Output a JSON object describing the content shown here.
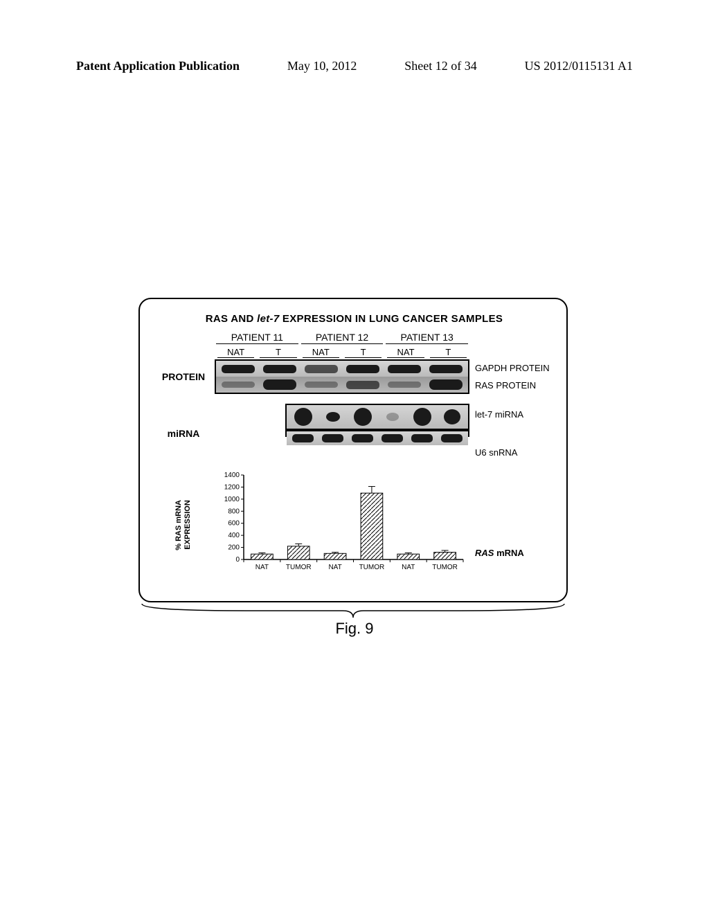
{
  "header": {
    "publication": "Patent Application Publication",
    "date": "May 10, 2012",
    "sheet": "Sheet 12 of 34",
    "docnum": "US 2012/0115131 A1"
  },
  "figure": {
    "title_prefix": "RAS AND ",
    "title_italic": "let-7",
    "title_suffix": " EXPRESSION IN LUNG CANCER SAMPLES",
    "patients": [
      "PATIENT 11",
      "PATIENT 12",
      "PATIENT 13"
    ],
    "lanes": [
      "NAT",
      "T",
      "NAT",
      "T",
      "NAT",
      "T"
    ],
    "row_protein": "PROTEIN",
    "row_mirna": "miRNA",
    "side_gapdh": "GAPDH PROTEIN",
    "side_ras": "RAS PROTEIN",
    "side_let7": "let-7 miRNA",
    "side_u6": "U6 snRNA",
    "side_rasmrna_italic": "RAS",
    "side_rasmrna_suffix": " mRNA"
  },
  "chart": {
    "ylabel_line1": "% RAS mRNA",
    "ylabel_line2": "EXPRESSION",
    "ylim": [
      0,
      1400
    ],
    "ytick_step": 200,
    "yticks": [
      0,
      200,
      400,
      600,
      800,
      1000,
      1200,
      1400
    ],
    "categories": [
      "NAT",
      "TUMOR",
      "NAT",
      "TUMOR",
      "NAT",
      "TUMOR"
    ],
    "values": [
      90,
      220,
      100,
      1100,
      90,
      120
    ],
    "errors": [
      20,
      40,
      20,
      110,
      20,
      30
    ],
    "bar_color": "pattern",
    "background": "#ffffff",
    "axis_color": "#000000",
    "bar_width": 0.6,
    "font_size_ticks": 10,
    "font_size_labels": 11
  },
  "caption": "Fig. 9"
}
